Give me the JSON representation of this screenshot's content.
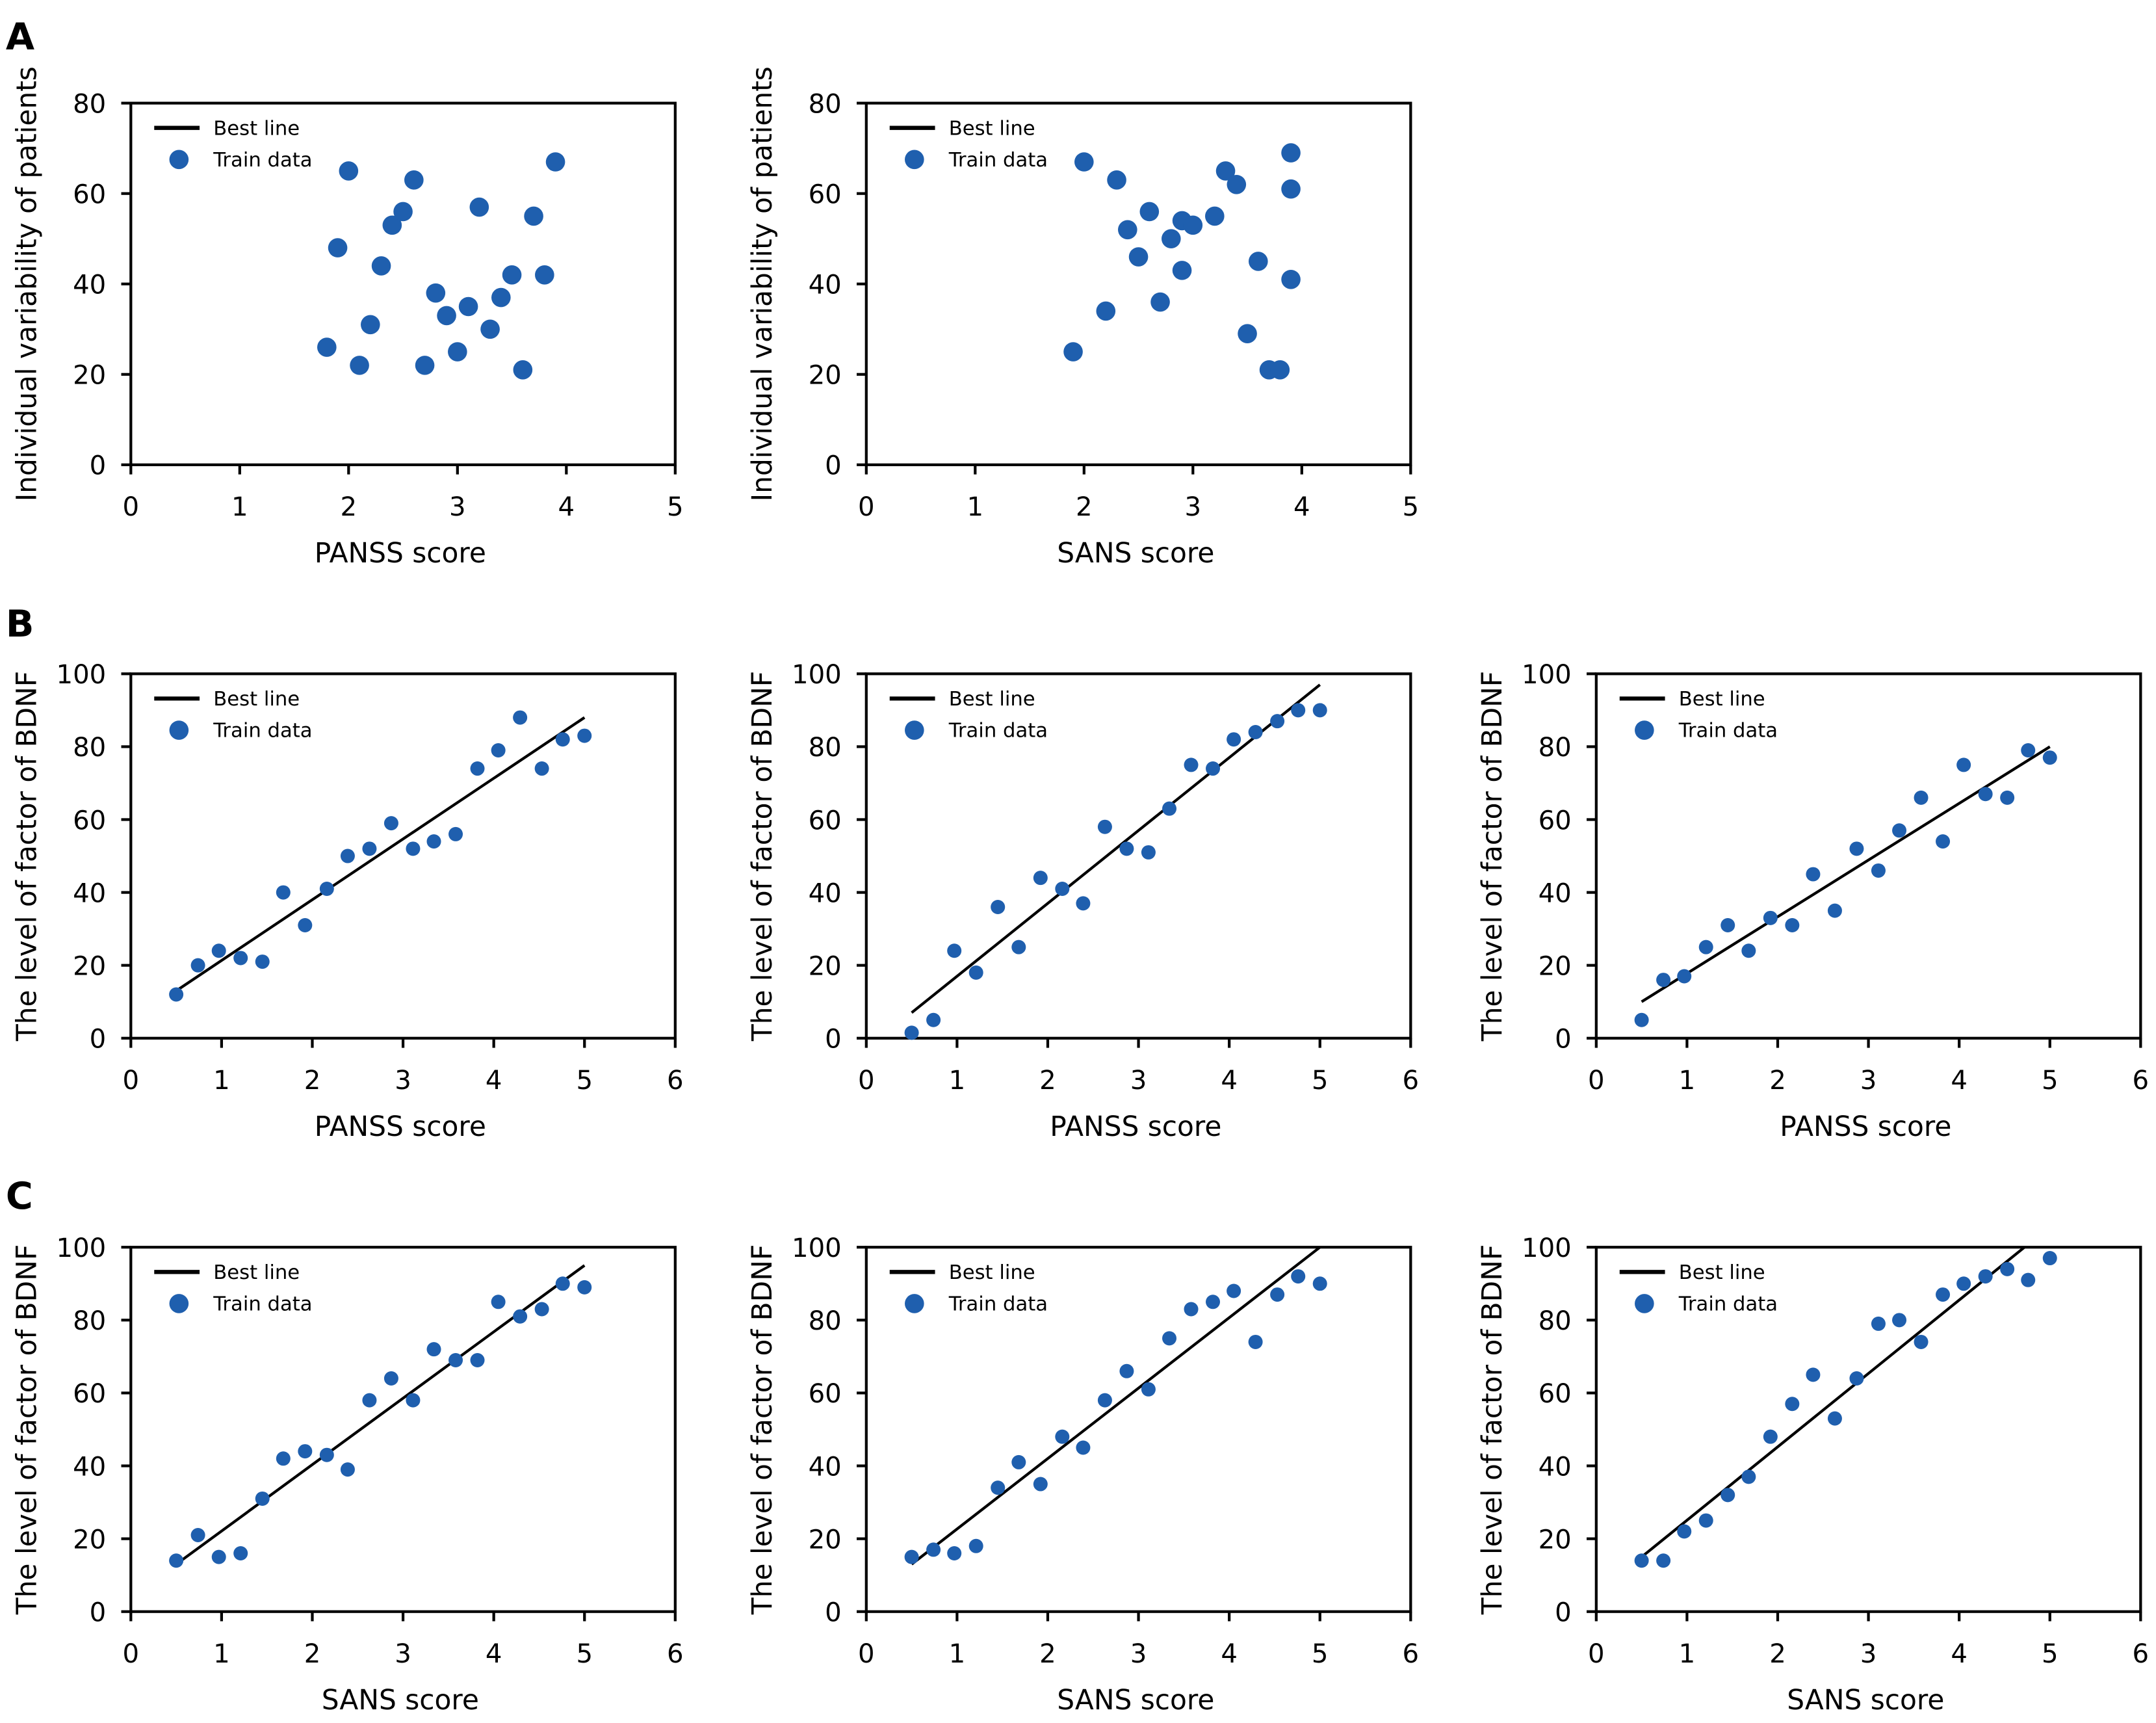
{
  "colors": {
    "point": "#1f5fae",
    "line": "#000000"
  },
  "legend": {
    "line_label": "Best line",
    "points_label": "Train data"
  },
  "panel_letters": [
    "A",
    "B",
    "C"
  ],
  "chart_data": [
    {
      "panel": "A",
      "type": "scatter",
      "xlabel": "PANSS score",
      "ylabel": "Individual variability of patients",
      "xlim": [
        0,
        5
      ],
      "ylim": [
        0,
        80
      ],
      "xticks": [
        0,
        1,
        2,
        3,
        4,
        5
      ],
      "yticks": [
        0,
        20,
        40,
        60,
        80
      ],
      "legend": "top-left",
      "grid": false,
      "x": [
        1.8,
        1.9,
        2.0,
        2.1,
        2.2,
        2.3,
        2.4,
        2.5,
        2.6,
        2.7,
        2.8,
        2.9,
        3.0,
        3.1,
        3.2,
        3.3,
        3.4,
        3.5,
        3.6,
        3.7,
        3.8,
        3.9
      ],
      "y": [
        26,
        48,
        65,
        22,
        31,
        44,
        53,
        56,
        63,
        22,
        38,
        33,
        25,
        35,
        57,
        30,
        37,
        42,
        21,
        55,
        42,
        67
      ],
      "best_line": null
    },
    {
      "panel": "A",
      "type": "scatter",
      "xlabel": "SANS score",
      "ylabel": "Individual variability of patients",
      "xlim": [
        0,
        5
      ],
      "ylim": [
        0,
        80
      ],
      "xticks": [
        0,
        1,
        2,
        3,
        4,
        5
      ],
      "yticks": [
        0,
        20,
        40,
        60,
        80
      ],
      "legend": "top-left",
      "grid": false,
      "x": [
        1.9,
        2.0,
        2.2,
        2.3,
        2.4,
        2.5,
        2.6,
        2.7,
        2.8,
        2.9,
        2.9,
        3.0,
        3.2,
        3.3,
        3.4,
        3.5,
        3.6,
        3.7,
        3.8,
        3.9,
        3.9,
        3.9
      ],
      "y": [
        25,
        67,
        34,
        63,
        52,
        46,
        56,
        36,
        50,
        54,
        43,
        53,
        55,
        65,
        62,
        29,
        45,
        21,
        21,
        69,
        61,
        41
      ],
      "best_line": null
    },
    {
      "panel": "B",
      "type": "scatter",
      "xlabel": "PANSS score",
      "ylabel": "The level of factor of BDNF",
      "xlim": [
        0,
        6
      ],
      "ylim": [
        0,
        100
      ],
      "xticks": [
        0,
        1,
        2,
        3,
        4,
        5,
        6
      ],
      "yticks": [
        0,
        20,
        40,
        60,
        80,
        100
      ],
      "legend": "top-left",
      "grid": false,
      "x": [
        0.5,
        0.74,
        0.97,
        1.21,
        1.45,
        1.68,
        1.92,
        2.16,
        2.39,
        2.63,
        2.87,
        3.11,
        3.34,
        3.58,
        3.82,
        4.05,
        4.29,
        4.53,
        4.76,
        5.0
      ],
      "y": [
        12,
        20,
        24,
        22,
        21,
        40,
        31,
        41,
        50,
        52,
        59,
        52,
        54,
        56,
        74,
        79,
        88,
        74,
        82,
        83
      ],
      "best_line": [
        [
          0.5,
          13
        ],
        [
          5,
          88
        ]
      ]
    },
    {
      "panel": "B",
      "type": "scatter",
      "xlabel": "PANSS score",
      "ylabel": "The level of factor of BDNF",
      "xlim": [
        0,
        6
      ],
      "ylim": [
        0,
        100
      ],
      "xticks": [
        0,
        1,
        2,
        3,
        4,
        5,
        6
      ],
      "yticks": [
        0,
        20,
        40,
        60,
        80,
        100
      ],
      "legend": "top-left",
      "grid": false,
      "x": [
        0.5,
        0.74,
        0.97,
        1.21,
        1.45,
        1.68,
        1.92,
        2.16,
        2.39,
        2.63,
        2.87,
        3.11,
        3.34,
        3.58,
        3.82,
        4.05,
        4.29,
        4.53,
        4.76,
        5.0
      ],
      "y": [
        1.5,
        5,
        24,
        18,
        36,
        25,
        44,
        41,
        37,
        58,
        52,
        51,
        63,
        75,
        74,
        82,
        84,
        87,
        90,
        90
      ],
      "best_line": [
        [
          0.5,
          7
        ],
        [
          5,
          97
        ]
      ]
    },
    {
      "panel": "B",
      "type": "scatter",
      "xlabel": "PANSS score",
      "ylabel": "The level of factor of BDNF",
      "xlim": [
        0,
        6
      ],
      "ylim": [
        0,
        100
      ],
      "xticks": [
        0,
        1,
        2,
        3,
        4,
        5,
        6
      ],
      "yticks": [
        0,
        20,
        40,
        60,
        80,
        100
      ],
      "legend": "top-left",
      "grid": false,
      "x": [
        0.5,
        0.74,
        0.97,
        1.21,
        1.45,
        1.68,
        1.92,
        2.16,
        2.39,
        2.63,
        2.87,
        3.11,
        3.34,
        3.58,
        3.82,
        4.05,
        4.29,
        4.53,
        4.76,
        5.0
      ],
      "y": [
        5,
        16,
        17,
        25,
        31,
        24,
        33,
        31,
        45,
        35,
        52,
        46,
        57,
        66,
        54,
        75,
        67,
        66,
        79,
        77
      ],
      "best_line": [
        [
          0.5,
          10
        ],
        [
          5,
          80
        ]
      ]
    },
    {
      "panel": "C",
      "type": "scatter",
      "xlabel": "SANS score",
      "ylabel": "The level of factor of BDNF",
      "xlim": [
        0,
        6
      ],
      "ylim": [
        0,
        100
      ],
      "xticks": [
        0,
        1,
        2,
        3,
        4,
        5,
        6
      ],
      "yticks": [
        0,
        20,
        40,
        60,
        80,
        100
      ],
      "legend": "top-left",
      "grid": false,
      "x": [
        0.5,
        0.74,
        0.97,
        1.21,
        1.45,
        1.68,
        1.92,
        2.16,
        2.39,
        2.63,
        2.87,
        3.11,
        3.34,
        3.58,
        3.82,
        4.05,
        4.29,
        4.53,
        4.76,
        5.0
      ],
      "y": [
        14,
        21,
        15,
        16,
        31,
        42,
        44,
        43,
        39,
        58,
        64,
        58,
        72,
        69,
        69,
        85,
        81,
        83,
        90,
        89
      ],
      "best_line": [
        [
          0.5,
          13
        ],
        [
          5,
          95
        ]
      ]
    },
    {
      "panel": "C",
      "type": "scatter",
      "xlabel": "SANS score",
      "ylabel": "The level of factor of BDNF",
      "xlim": [
        0,
        6
      ],
      "ylim": [
        0,
        100
      ],
      "xticks": [
        0,
        1,
        2,
        3,
        4,
        5,
        6
      ],
      "yticks": [
        0,
        20,
        40,
        60,
        80,
        100
      ],
      "legend": "top-left",
      "grid": false,
      "x": [
        0.5,
        0.74,
        0.97,
        1.21,
        1.45,
        1.68,
        1.92,
        2.16,
        2.39,
        2.63,
        2.87,
        3.11,
        3.34,
        3.58,
        3.82,
        4.05,
        4.29,
        4.53,
        4.76,
        5.0
      ],
      "y": [
        15,
        17,
        16,
        18,
        34,
        41,
        35,
        48,
        45,
        58,
        66,
        61,
        75,
        83,
        85,
        88,
        74,
        87,
        92,
        90
      ],
      "best_line": [
        [
          0.5,
          13
        ],
        [
          5,
          100
        ]
      ]
    },
    {
      "panel": "C",
      "type": "scatter",
      "xlabel": "SANS score",
      "ylabel": "The level of factor of BDNF",
      "xlim": [
        0,
        6
      ],
      "ylim": [
        0,
        100
      ],
      "xticks": [
        0,
        1,
        2,
        3,
        4,
        5,
        6
      ],
      "yticks": [
        0,
        20,
        40,
        60,
        80,
        100
      ],
      "legend": "top-left",
      "grid": false,
      "x": [
        0.5,
        0.74,
        0.97,
        1.21,
        1.45,
        1.68,
        1.92,
        2.16,
        2.39,
        2.63,
        2.87,
        3.11,
        3.34,
        3.58,
        3.82,
        4.05,
        4.29,
        4.53,
        4.76,
        5.0
      ],
      "y": [
        14,
        14,
        22,
        25,
        32,
        37,
        48,
        57,
        65,
        53,
        64,
        79,
        80,
        74,
        87,
        90,
        92,
        94,
        91,
        97
      ],
      "best_line": [
        [
          0.5,
          15
        ],
        [
          4.72,
          100
        ]
      ]
    }
  ]
}
